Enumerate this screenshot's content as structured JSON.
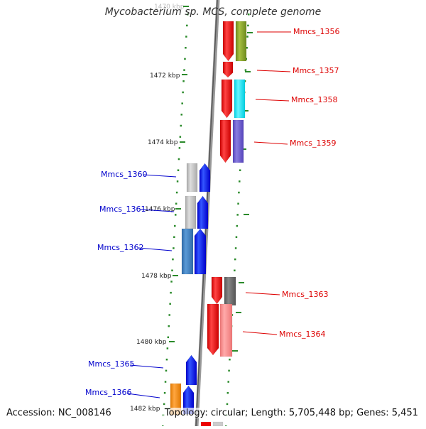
{
  "title": "Mycobacterium sp. MCS, complete genome",
  "accession_text": "Accession: NC_008146",
  "info_text": "Topology: circular; Length: 5,705,448 bp; Genes: 5,451",
  "axis_labels": [
    {
      "text": "1470 kbp",
      "faded": true
    },
    {
      "text": "1472 kbp"
    },
    {
      "text": "1474 kbp"
    },
    {
      "text": "1476 kbp"
    },
    {
      "text": "1478 kbp"
    },
    {
      "text": "1480 kbp"
    },
    {
      "text": "1482 kbp"
    }
  ],
  "genes_right": [
    {
      "label": "Mmcs_1356",
      "color": "#dd0000"
    },
    {
      "label": "Mmcs_1357",
      "color": "#dd0000"
    },
    {
      "label": "Mmcs_1358",
      "color": "#dd0000"
    },
    {
      "label": "Mmcs_1359",
      "color": "#dd0000"
    },
    {
      "label": "Mmcs_1363",
      "color": "#dd0000"
    },
    {
      "label": "Mmcs_1364",
      "color": "#dd0000"
    }
  ],
  "genes_left": [
    {
      "label": "Mmcs_1360",
      "color": "#0000cc"
    },
    {
      "label": "Mmcs_1361",
      "color": "#0000cc"
    },
    {
      "label": "Mmcs_1362",
      "color": "#0000cc"
    },
    {
      "label": "Mmcs_1365",
      "color": "#0000cc"
    },
    {
      "label": "Mmcs_1366",
      "color": "#0000cc"
    }
  ],
  "colors": {
    "forward_strand": "#ee0000",
    "reverse_strand": "#0000ee",
    "tick_dots": "#2a8a2a",
    "backbone": "#888888"
  }
}
